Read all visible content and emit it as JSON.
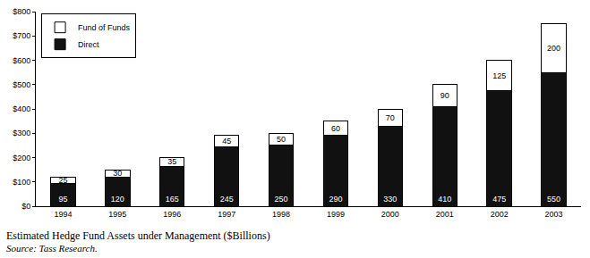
{
  "chart_data": {
    "type": "bar",
    "title": "Estimated Hedge Fund Assets under Management ($Billions)",
    "annotations": [
      "Source: Tass Research."
    ],
    "categories": [
      "1994",
      "1995",
      "1996",
      "1997",
      "1998",
      "1999",
      "2000",
      "2001",
      "2002",
      "2003"
    ],
    "series": [
      {
        "name": "Direct",
        "color": "#111111",
        "values": [
          95,
          120,
          165,
          245,
          250,
          290,
          330,
          410,
          475,
          550
        ]
      },
      {
        "name": "Fund of Funds",
        "color": "#ffffff",
        "values": [
          25,
          30,
          35,
          45,
          50,
          60,
          70,
          90,
          125,
          200
        ]
      }
    ],
    "stacked": true,
    "data_labels": true,
    "legend": "top-left",
    "grid": false,
    "ylim": [
      0,
      800
    ],
    "yticks": [
      {
        "value": 0,
        "label": "$0"
      },
      {
        "value": 100,
        "label": "$100"
      },
      {
        "value": 200,
        "label": "$200"
      },
      {
        "value": 300,
        "label": "$300"
      },
      {
        "value": 400,
        "label": "$400"
      },
      {
        "value": 500,
        "label": "$500"
      },
      {
        "value": 600,
        "label": "$600"
      },
      {
        "value": 700,
        "label": "$700"
      },
      {
        "value": 800,
        "label": "$800"
      }
    ]
  }
}
